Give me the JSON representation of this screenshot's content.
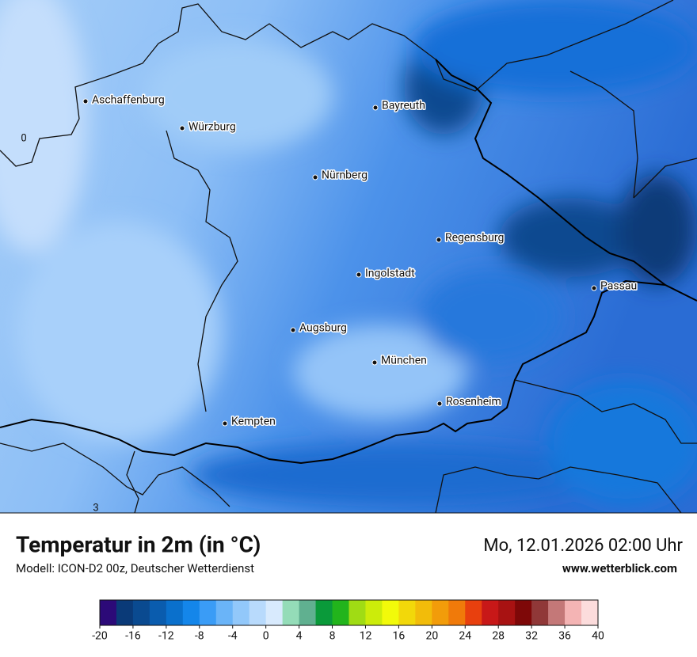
{
  "header": {
    "title": "Temperatur in 2m (in °C)",
    "subtitle": "Modell: ICON-D2 00z, Deutscher Wetterdienst",
    "datetime": "Mo, 12.01.2026 02:00 Uhr",
    "website": "www.wetterblick.com"
  },
  "map": {
    "cities": [
      "Aschaffenburg",
      "Würzburg",
      "Bayreuth",
      "Nürnberg",
      "Regensburg",
      "Ingolstadt",
      "Passau",
      "Augsburg",
      "München",
      "Rosenheim",
      "Kempten"
    ],
    "edge_labels": [
      "0",
      "3"
    ]
  },
  "colorbar": {
    "range": [
      -20,
      40
    ],
    "ticks": [
      -20,
      -16,
      -12,
      -8,
      -4,
      0,
      4,
      8,
      12,
      16,
      20,
      24,
      28,
      32,
      36,
      40
    ],
    "colors": [
      "#2c0a78",
      "#0a3a78",
      "#0a4a90",
      "#0a5cae",
      "#0a70cc",
      "#1486ea",
      "#3a9cf6",
      "#6ab4f8",
      "#92c8fa",
      "#b8dafc",
      "#d8eafd",
      "#94dcb8",
      "#60b090",
      "#0a9a3a",
      "#22b41c",
      "#a0dc14",
      "#ccec0a",
      "#f2fa0a",
      "#f2d80a",
      "#f2bc0a",
      "#f29c0a",
      "#f07a0a",
      "#e8400e",
      "#c81818",
      "#a81212",
      "#7e0808",
      "#903838",
      "#c47878",
      "#f4b4b4",
      "#fcdcdc"
    ]
  }
}
